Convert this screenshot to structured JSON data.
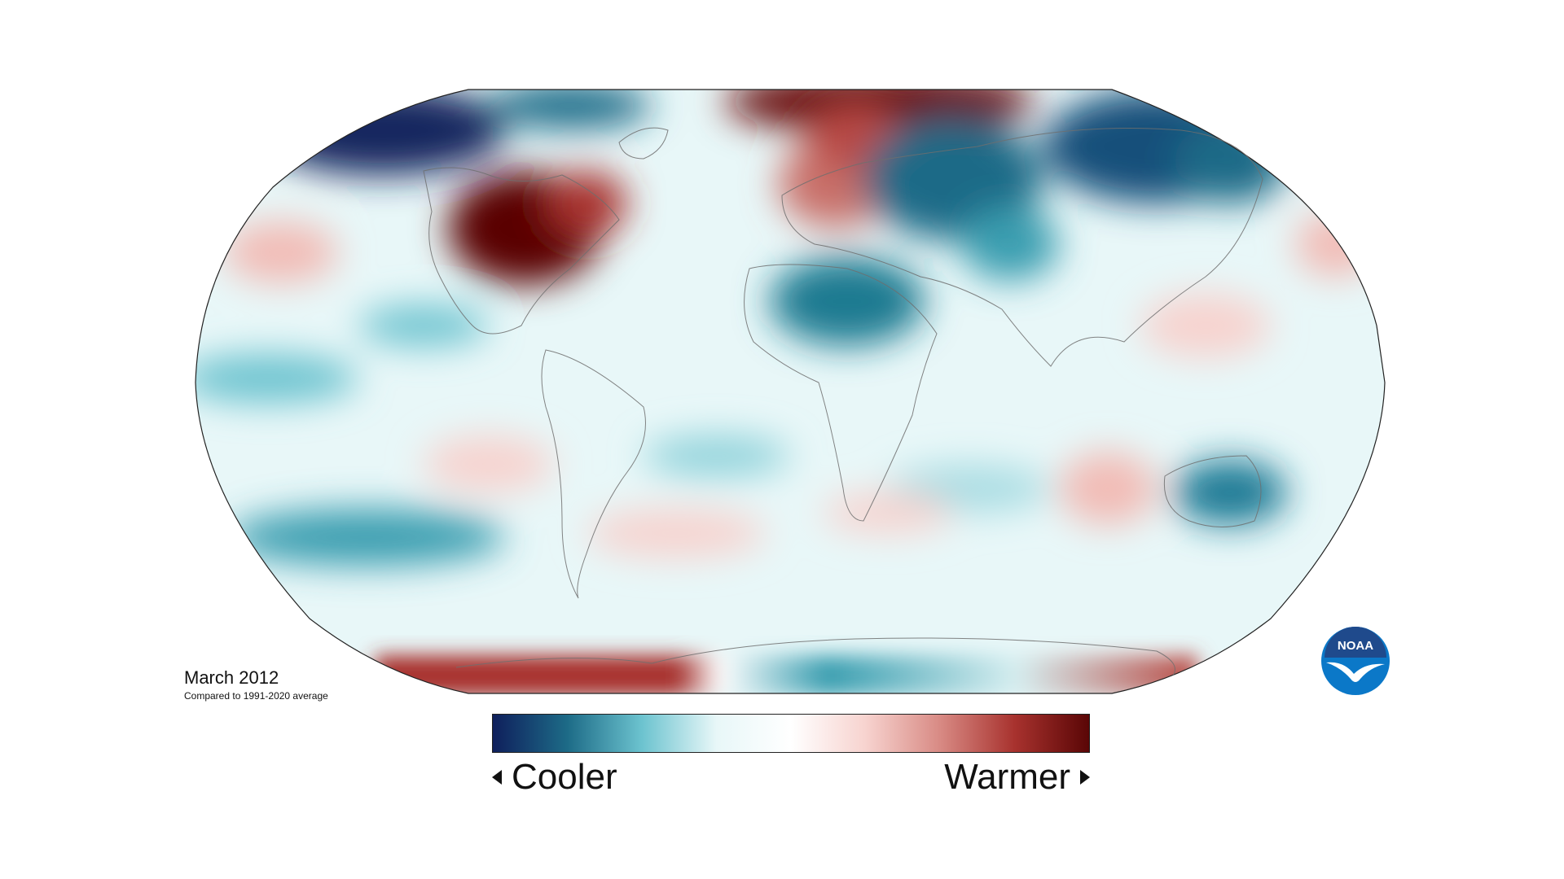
{
  "caption": {
    "date": "March 2012",
    "baseline": "Compared to 1991-2020 average"
  },
  "scale": {
    "cooler_label": "Cooler",
    "warmer_label": "Warmer",
    "colors": [
      "#0f1f5c",
      "#1d6b87",
      "#6cc3cf",
      "#e8f7f8",
      "#ffffff",
      "#f7d3cf",
      "#d88a84",
      "#a8322e",
      "#5a0606"
    ]
  },
  "logo": {
    "text": "NOAA",
    "icon": "noaa-logo-icon",
    "colors": [
      "#1f4a8c",
      "#0b78c8",
      "#ffffff"
    ]
  },
  "map": {
    "projection": "robinson",
    "ocean_base_color": "#e8f7f8",
    "regions": [
      {
        "name": "north-america-interior-warm",
        "color": "#5a0606"
      },
      {
        "name": "europe-warm",
        "color": "#c9716b"
      },
      {
        "name": "arctic-top-warm",
        "color": "#6b0c0c"
      },
      {
        "name": "russia-cool",
        "color": "#1d6b87"
      },
      {
        "name": "east-siberia-cool",
        "color": "#14507a"
      },
      {
        "name": "alaska-cool",
        "color": "#14285e"
      },
      {
        "name": "sahara-cool",
        "color": "#1f7a91"
      },
      {
        "name": "australia-cool",
        "color": "#1e7a95"
      },
      {
        "name": "antarctic-west-warm",
        "color": "#a8322e"
      },
      {
        "name": "antarctic-east-cool",
        "color": "#3a9eb0"
      }
    ]
  }
}
